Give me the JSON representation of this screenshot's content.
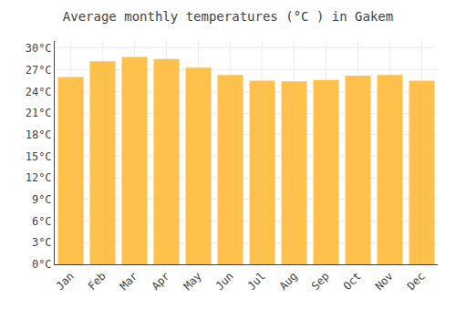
{
  "chart_data": {
    "type": "bar",
    "title": "Average monthly temperatures (°C ) in Gakem",
    "categories": [
      "Jan",
      "Feb",
      "Mar",
      "Apr",
      "May",
      "Jun",
      "Jul",
      "Aug",
      "Sep",
      "Oct",
      "Nov",
      "Dec"
    ],
    "values": [
      26.0,
      28.2,
      28.8,
      28.5,
      27.3,
      26.3,
      25.5,
      25.4,
      25.6,
      26.2,
      26.3,
      25.5
    ],
    "color": "#FFC04C",
    "ylim": [
      0,
      31
    ],
    "yticks": [
      {
        "value": 0,
        "label": "0°C"
      },
      {
        "value": 3,
        "label": "3°C"
      },
      {
        "value": 6,
        "label": "6°C"
      },
      {
        "value": 9,
        "label": "9°C"
      },
      {
        "value": 12,
        "label": "12°C"
      },
      {
        "value": 15,
        "label": "15°C"
      },
      {
        "value": 18,
        "label": "18°C"
      },
      {
        "value": 21,
        "label": "21°C"
      },
      {
        "value": 24,
        "label": "24°C"
      },
      {
        "value": 27,
        "label": "27°C"
      },
      {
        "value": 30,
        "label": "30°C"
      }
    ],
    "grid": true
  }
}
